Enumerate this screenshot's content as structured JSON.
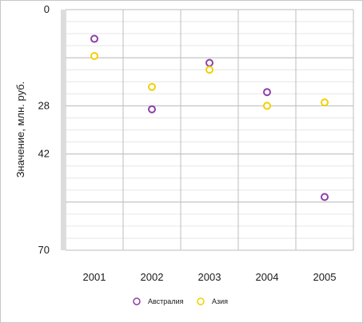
{
  "chart_data": {
    "type": "scatter",
    "title": "",
    "xlabel": "",
    "ylabel": "Значение, млн. руб.",
    "categories": [
      "2001",
      "2002",
      "2003",
      "2004",
      "2005"
    ],
    "y_ticks": [
      "0",
      "28",
      "42",
      "70"
    ],
    "ylim": [
      0,
      70
    ],
    "y_inverted": true,
    "grid": true,
    "legend_position": "bottom",
    "series": [
      {
        "name": "Австралия",
        "color": "#8e3fa8",
        "values": [
          8.5,
          29,
          15.5,
          24,
          54.5
        ]
      },
      {
        "name": "Азия",
        "color": "#f2d000",
        "values": [
          13.5,
          22.5,
          17.5,
          28,
          27
        ]
      }
    ]
  }
}
